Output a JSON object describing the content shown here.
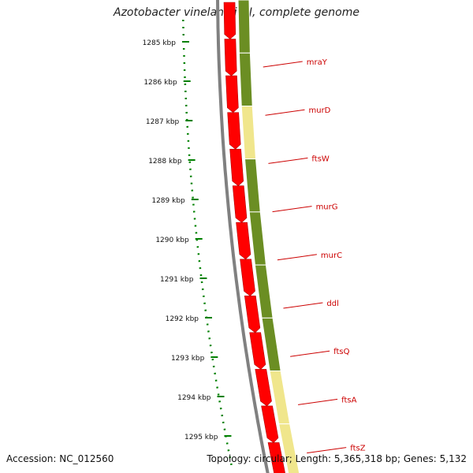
{
  "title": "Azotobacter vinelandii DJ, complete genome",
  "footer": {
    "accession_label": "Accession:",
    "accession": "NC_012560",
    "topology_text": "Topology: circular; Length: 5,365,318 bp; Genes: 5,132"
  },
  "colors": {
    "forward_gene": "#ff0000",
    "gene_segment_dark": "#6b8e23",
    "gene_segment_light": "#f0e68c",
    "tick": "#008000",
    "gene_label": "#cc0000",
    "backbone": "#808080"
  },
  "ticks": [
    "1285 kbp",
    "1286 kbp",
    "1287 kbp",
    "1288 kbp",
    "1289 kbp",
    "1290 kbp",
    "1291 kbp",
    "1292 kbp",
    "1293 kbp",
    "1294 kbp",
    "1295 kbp"
  ],
  "genes": [
    {
      "name": "mraY",
      "shade": "dark"
    },
    {
      "name": "murD",
      "shade": "dark"
    },
    {
      "name": "ftsW",
      "shade": "light"
    },
    {
      "name": "murG",
      "shade": "dark"
    },
    {
      "name": "murC",
      "shade": "dark"
    },
    {
      "name": "ddl",
      "shade": "dark"
    },
    {
      "name": "ftsQ",
      "shade": "dark"
    },
    {
      "name": "ftsA",
      "shade": "light"
    },
    {
      "name": "ftsZ",
      "shade": "light"
    }
  ]
}
